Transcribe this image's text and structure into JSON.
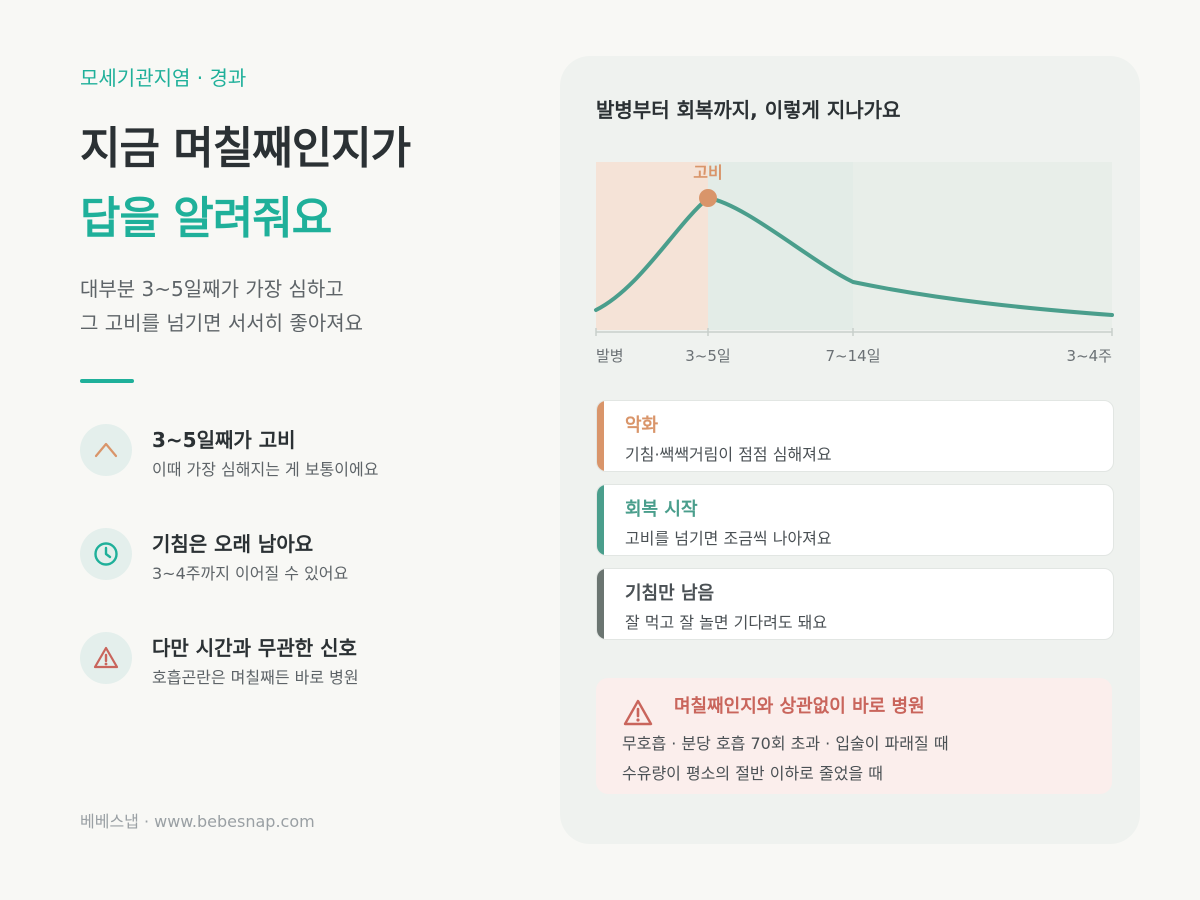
{
  "header": {
    "eyebrow": "모세기관지염 · 경과",
    "title_line1": "지금 며칠째인지가",
    "title_line2": "답을 알려줘요",
    "subtitle_line1": "대부분 3~5일째가 가장 심하고",
    "subtitle_line2": "그 고비를 넘기면 서서히 좋아져요"
  },
  "features": [
    {
      "icon": "peak-icon",
      "title": "3~5일째가 고비",
      "desc": "이때 가장 심해지는 게 보통이에요"
    },
    {
      "icon": "clock-icon",
      "title": "기침은 오래 남아요",
      "desc": "3~4주까지 이어질 수 있어요"
    },
    {
      "icon": "warning-icon",
      "title": "다만 시간과 무관한 신호",
      "desc": "호흡곤란은 며칠째든 바로 병원"
    }
  ],
  "footer": "베베스냅 · www.bebesnap.com",
  "card": {
    "title": "발병부터 회복까지, 이렇게 지나가요"
  },
  "chart_data": {
    "type": "line",
    "title": "발병부터 회복까지, 이렇게 지나가요",
    "x_ticks": [
      "발병",
      "3~5일",
      "7~14일",
      "3~4주"
    ],
    "x_positions_days": [
      0,
      4,
      10,
      28
    ],
    "series": [
      {
        "values": [
          0.15,
          0.55,
          0.9,
          0.75,
          0.3,
          0.12
        ]
      }
    ],
    "peak_label": "고비",
    "peak_x": "3~5일",
    "shaded_regions": [
      "발병~3~5일",
      "3~5일~7~14일"
    ],
    "grid": false,
    "colors": {
      "line": "#4a9e8c",
      "peak": "#d9956a",
      "region_worsen": "#f5e3d7",
      "region_recover": "#e3ece7"
    }
  },
  "stages": [
    {
      "title": "악화",
      "desc": "기침·쌕쌕거림이 점점 심해져요",
      "color": "#d9956a"
    },
    {
      "title": "회복 시작",
      "desc": "고비를 넘기면 조금씩 나아져요",
      "color": "#4a9e8c"
    },
    {
      "title": "기침만 남음",
      "desc": "잘 먹고 잘 놀면 기다려도 돼요",
      "color": "#6b7571"
    }
  ],
  "warning": {
    "icon": "warning-icon",
    "title": "며칠째인지와 상관없이 바로 병원",
    "line1": "무호흡 · 분당 호흡 70회 초과 · 입술이 파래질 때",
    "line2": "수유량이 평소의 절반 이하로 줄었을 때",
    "color": "#c9655c"
  }
}
